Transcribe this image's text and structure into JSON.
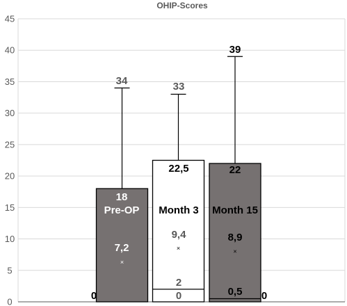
{
  "chart_data": {
    "type": "box",
    "title": "OHIP-Scores",
    "ylim": [
      0,
      45
    ],
    "yticks": [
      0,
      5,
      10,
      15,
      20,
      25,
      30,
      35,
      40,
      45
    ],
    "grid": true,
    "categories": [
      "Pre-OP",
      "Month 3",
      "Month 15"
    ],
    "series": [
      {
        "category": "Pre-OP",
        "min": 0,
        "q1": 0,
        "q3": 18,
        "max": 34,
        "median": 0,
        "mean": 7.2,
        "labels": {
          "max": "34",
          "q3": "18",
          "mean": "7,2",
          "min": "0"
        },
        "fill": "#767171",
        "text_color": "#ffffff"
      },
      {
        "category": "Month 3",
        "min": 0,
        "q1": 2,
        "q3": 22.5,
        "max": 33,
        "median": 2,
        "mean": 9.4,
        "labels": {
          "max": "33",
          "q3": "22,5",
          "mean": "9,4",
          "min": "0",
          "q1": "2"
        },
        "fill": "#ffffff",
        "text_color": "#000000"
      },
      {
        "category": "Month 15",
        "min": 0,
        "q1": 0.5,
        "q3": 22,
        "max": 39,
        "median": 0.5,
        "mean": 8.9,
        "labels": {
          "max": "39",
          "q3": "22",
          "mean": "8,9",
          "min": "0",
          "q1": "0,5"
        },
        "fill": "#767171",
        "text_color": "#000000"
      }
    ],
    "colors": {
      "box_dark": "#767171",
      "box_light": "#ffffff",
      "label_grey": "#595959",
      "grid": "#d9d9d9"
    }
  }
}
